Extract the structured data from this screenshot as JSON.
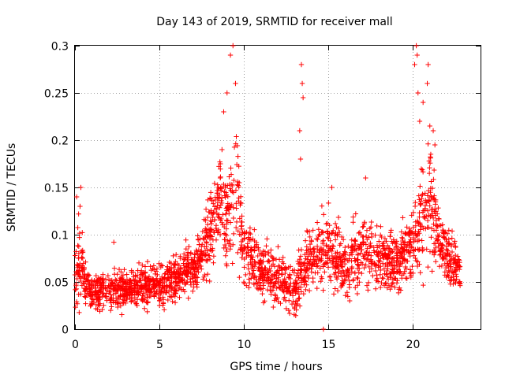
{
  "chart_data": {
    "type": "scatter",
    "title": "Day 143 of 2019, SRMTID for receiver mall",
    "xlabel": "GPS time / hours",
    "ylabel": "SRMTID / TECUs",
    "xlim": [
      0,
      24
    ],
    "ylim": [
      0,
      0.3
    ],
    "xticks": [
      0,
      5,
      10,
      15,
      20
    ],
    "xtick_labels": [
      "0",
      "5",
      "10",
      "15",
      "20"
    ],
    "yticks": [
      0,
      0.05,
      0.1,
      0.15,
      0.2,
      0.25,
      0.3
    ],
    "ytick_labels": [
      "0",
      "0.05",
      "0.1",
      "0.15",
      "0.2",
      "0.25",
      "0.3"
    ],
    "grid": true,
    "marker": "+",
    "series": [
      {
        "name": "SRMTID",
        "color": "#ff0000",
        "envelope": [
          {
            "x": 0.0,
            "y": 0.06,
            "spread": 0.03
          },
          {
            "x": 0.3,
            "y": 0.075,
            "spread": 0.04
          },
          {
            "x": 0.6,
            "y": 0.045,
            "spread": 0.018
          },
          {
            "x": 1.0,
            "y": 0.038,
            "spread": 0.015
          },
          {
            "x": 2.0,
            "y": 0.042,
            "spread": 0.016
          },
          {
            "x": 3.0,
            "y": 0.042,
            "spread": 0.016
          },
          {
            "x": 4.0,
            "y": 0.045,
            "spread": 0.017
          },
          {
            "x": 5.0,
            "y": 0.047,
            "spread": 0.018
          },
          {
            "x": 6.0,
            "y": 0.055,
            "spread": 0.018
          },
          {
            "x": 7.0,
            "y": 0.065,
            "spread": 0.02
          },
          {
            "x": 7.8,
            "y": 0.09,
            "spread": 0.03
          },
          {
            "x": 8.5,
            "y": 0.14,
            "spread": 0.04
          },
          {
            "x": 9.0,
            "y": 0.12,
            "spread": 0.05
          },
          {
            "x": 9.5,
            "y": 0.16,
            "spread": 0.07
          },
          {
            "x": 10.0,
            "y": 0.08,
            "spread": 0.03
          },
          {
            "x": 11.0,
            "y": 0.06,
            "spread": 0.022
          },
          {
            "x": 12.0,
            "y": 0.055,
            "spread": 0.022
          },
          {
            "x": 13.0,
            "y": 0.04,
            "spread": 0.02
          },
          {
            "x": 13.5,
            "y": 0.065,
            "spread": 0.03
          },
          {
            "x": 14.0,
            "y": 0.075,
            "spread": 0.025
          },
          {
            "x": 15.0,
            "y": 0.09,
            "spread": 0.03
          },
          {
            "x": 16.0,
            "y": 0.06,
            "spread": 0.025
          },
          {
            "x": 17.0,
            "y": 0.085,
            "spread": 0.03
          },
          {
            "x": 18.0,
            "y": 0.075,
            "spread": 0.025
          },
          {
            "x": 19.0,
            "y": 0.07,
            "spread": 0.025
          },
          {
            "x": 20.0,
            "y": 0.09,
            "spread": 0.03
          },
          {
            "x": 20.5,
            "y": 0.12,
            "spread": 0.05
          },
          {
            "x": 21.0,
            "y": 0.14,
            "spread": 0.06
          },
          {
            "x": 21.5,
            "y": 0.1,
            "spread": 0.03
          },
          {
            "x": 22.0,
            "y": 0.08,
            "spread": 0.025
          },
          {
            "x": 22.8,
            "y": 0.06,
            "spread": 0.02
          }
        ],
        "extremes": [
          [
            0.1,
            0.14
          ],
          [
            0.3,
            0.13
          ],
          [
            0.35,
            0.15
          ],
          [
            2.3,
            0.092
          ],
          [
            9.0,
            0.25
          ],
          [
            9.2,
            0.29
          ],
          [
            9.35,
            0.3
          ],
          [
            9.5,
            0.26
          ],
          [
            8.8,
            0.23
          ],
          [
            8.7,
            0.19
          ],
          [
            13.4,
            0.28
          ],
          [
            13.45,
            0.26
          ],
          [
            13.5,
            0.245
          ],
          [
            13.3,
            0.21
          ],
          [
            13.35,
            0.18
          ],
          [
            14.7,
            0.0
          ],
          [
            15.2,
            0.15
          ],
          [
            17.2,
            0.16
          ],
          [
            20.2,
            0.3
          ],
          [
            20.25,
            0.29
          ],
          [
            20.1,
            0.28
          ],
          [
            20.3,
            0.25
          ],
          [
            20.4,
            0.22
          ],
          [
            20.9,
            0.28
          ],
          [
            20.85,
            0.26
          ],
          [
            20.6,
            0.24
          ],
          [
            21.0,
            0.215
          ],
          [
            21.2,
            0.21
          ],
          [
            21.3,
            0.195
          ]
        ]
      }
    ]
  }
}
